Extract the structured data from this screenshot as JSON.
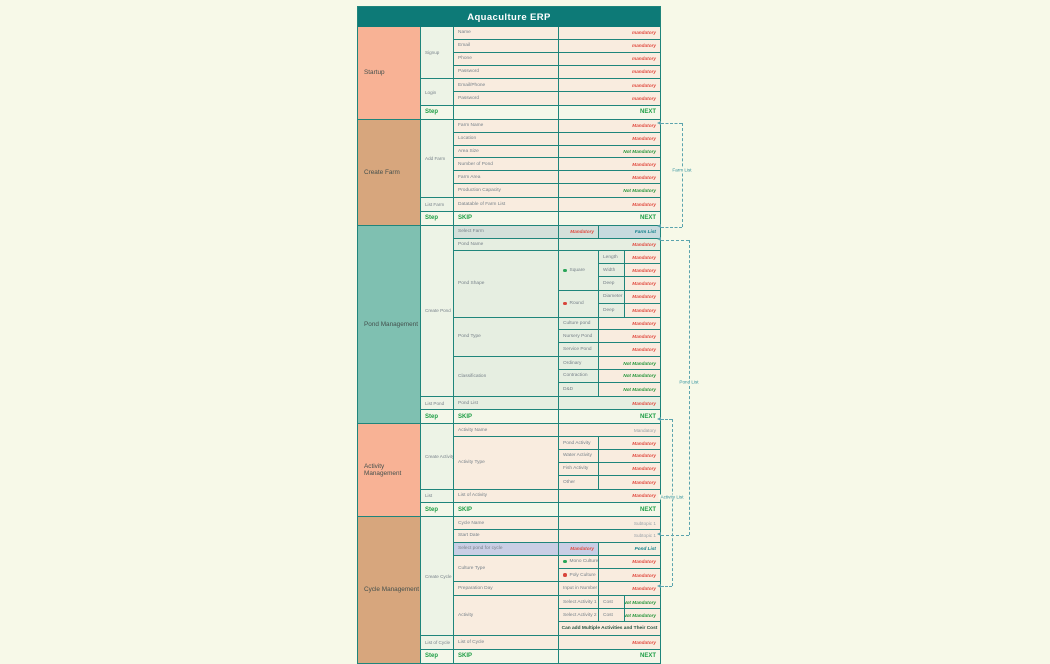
{
  "title": "Aquaculture ERP",
  "colors": {
    "header": "#0d7a77",
    "border": "#1f857b",
    "mandatory_red": "#e14b41",
    "not_mandatory_green": "#27963c",
    "reference_teal": "#0e7e8a",
    "section_salmon": "#f8b295",
    "section_tan": "#d7a67d",
    "section_teal": "#7fc0b1"
  },
  "sections": [
    {
      "name": "Startup",
      "tone": "salmon",
      "cells": "peach",
      "groups": [
        {
          "label": "Signup",
          "rows": [
            {
              "t": "simple",
              "label": "Name",
              "status": "mandatory",
              "s": "red"
            },
            {
              "t": "simple",
              "label": "Email",
              "status": "mandatory",
              "s": "red"
            },
            {
              "t": "simple",
              "label": "Phone",
              "status": "mandatory",
              "s": "red"
            },
            {
              "t": "simple",
              "label": "Password",
              "status": "mandatory",
              "s": "red"
            }
          ]
        },
        {
          "label": "Login",
          "rows": [
            {
              "t": "simple",
              "label": "Email/Phone",
              "status": "mandatory",
              "s": "red"
            },
            {
              "t": "simple",
              "label": "Password",
              "status": "mandatory",
              "s": "red"
            }
          ]
        }
      ],
      "step": {
        "label": "Step",
        "skip": "",
        "next": "NEXT"
      }
    },
    {
      "name": "Create Farm",
      "tone": "tan",
      "cells": "peach",
      "groups": [
        {
          "label": "Add Farm",
          "rows": [
            {
              "t": "simple",
              "label": "Farm Name",
              "status": "Mandatory",
              "s": "red"
            },
            {
              "t": "simple",
              "label": "Location",
              "status": "Mandatory",
              "s": "red"
            },
            {
              "t": "simple",
              "label": "Area Size",
              "status": "Not Mandatory",
              "s": "green"
            },
            {
              "t": "simple",
              "label": "Number of Pond",
              "status": "Mandatory",
              "s": "red"
            },
            {
              "t": "simple",
              "label": "Farm Area",
              "status": "Mandatory",
              "s": "red"
            },
            {
              "t": "simple",
              "label": "Production Capacity",
              "status": "Not Mandatory",
              "s": "green"
            }
          ]
        },
        {
          "label": "List Farm",
          "rows": [
            {
              "t": "simple",
              "label": "Datatable of Farm List",
              "status": "Mandatory",
              "s": "red"
            }
          ]
        }
      ],
      "step": {
        "label": "Step",
        "skip": "SKIP",
        "next": "NEXT"
      }
    },
    {
      "name": "Pond Management",
      "tone": "teal",
      "cells": "sage",
      "groups": [
        {
          "label": "Create Pond",
          "rows": [
            {
              "t": "listref",
              "label": "Select Farm",
              "status": "Mandatory",
              "ref": "Farm List",
              "tone": "sageblue"
            },
            {
              "t": "simple",
              "label": "Pond Name",
              "status": "Mandatory",
              "s": "red"
            },
            {
              "t": "shape",
              "label": "Pond Shape",
              "variants": [
                {
                  "dot": "green",
                  "name": "Square",
                  "items": [
                    {
                      "label": "Length",
                      "status": "Mandatory",
                      "s": "red"
                    },
                    {
                      "label": "Width",
                      "status": "Mandatory",
                      "s": "red"
                    },
                    {
                      "label": "Deep",
                      "status": "Mandatory",
                      "s": "red"
                    }
                  ]
                },
                {
                  "dot": "red",
                  "name": "Round",
                  "items": [
                    {
                      "label": "Diameter",
                      "status": "Mandatory",
                      "s": "red"
                    },
                    {
                      "label": "Deep",
                      "status": "Mandatory",
                      "s": "red"
                    }
                  ]
                }
              ]
            },
            {
              "t": "options",
              "label": "Pond Type",
              "options": [
                {
                  "label": "Culture pond",
                  "status": "Mandatory",
                  "s": "red"
                },
                {
                  "label": "Nursery Pond",
                  "status": "Mandatory",
                  "s": "red"
                },
                {
                  "label": "Service Pond",
                  "status": "Mandatory",
                  "s": "red"
                }
              ]
            },
            {
              "t": "options",
              "label": "Classification",
              "options": [
                {
                  "label": "Ordinary",
                  "status": "Not Mandatory",
                  "s": "green"
                },
                {
                  "label": "Contraction",
                  "status": "Not Mandatory",
                  "s": "green"
                },
                {
                  "label": "D&D",
                  "status": "Not Mandatory",
                  "s": "green"
                }
              ]
            }
          ]
        },
        {
          "label": "List Pond",
          "rows": [
            {
              "t": "simple",
              "label": "Pond List",
              "status": "Mandatory",
              "s": "red"
            }
          ]
        }
      ],
      "step": {
        "label": "Step",
        "skip": "SKIP",
        "next": "NEXT"
      }
    },
    {
      "name": "Activity Management",
      "tone": "salmon",
      "cells": "peach",
      "groups": [
        {
          "label": "Create Activity",
          "rows": [
            {
              "t": "simple",
              "label": "Activity Name",
              "status": "Mandatory",
              "s": "gray"
            },
            {
              "t": "options",
              "label": "Activity Type",
              "options": [
                {
                  "label": "Pond Activity",
                  "status": "Mandatory",
                  "s": "red"
                },
                {
                  "label": "Water Activity",
                  "status": "Mandatory",
                  "s": "red"
                },
                {
                  "label": "Fish Activity",
                  "status": "Mandatory",
                  "s": "red"
                },
                {
                  "label": "Other",
                  "status": "Mandatory",
                  "s": "red"
                }
              ]
            }
          ]
        },
        {
          "label": "List",
          "rows": [
            {
              "t": "simple",
              "label": "List of Activity",
              "status": "Mandatory",
              "s": "red"
            }
          ]
        }
      ],
      "step": {
        "label": "Step",
        "skip": "SKIP",
        "next": "NEXT"
      }
    },
    {
      "name": "Cycle Management",
      "tone": "tan",
      "cells": "peach",
      "groups": [
        {
          "label": "Create Cycle",
          "rows": [
            {
              "t": "simple",
              "label": "Cycle Name",
              "status": "Subtopic 1",
              "s": "gray"
            },
            {
              "t": "simple",
              "label": "Start Date",
              "status": "Subtopic 1",
              "s": "gray"
            },
            {
              "t": "listref",
              "label": "Select pond for cycle",
              "status": "Mandatory",
              "ref": "Pond List",
              "tone": "lavender"
            },
            {
              "t": "options",
              "label": "Culture Type",
              "options": [
                {
                  "label": "Mono Culture",
                  "status": "Mandatory",
                  "s": "red",
                  "dot": "green"
                },
                {
                  "label": "Poly Culture",
                  "status": "Mandatory",
                  "s": "red",
                  "dot": "red"
                }
              ]
            },
            {
              "t": "options",
              "label": "Preparation Day",
              "options": [
                {
                  "label": "Input in Number",
                  "status": "Mandatory",
                  "s": "red"
                }
              ]
            },
            {
              "t": "activity",
              "label": "Activity",
              "rows": [
                {
                  "c1": "Select Activity 1",
                  "c2": "Cost",
                  "status": "Not Mandatory",
                  "s": "green"
                },
                {
                  "c1": "Select Activity 2",
                  "c2": "Cost",
                  "status": "Not Mandatory",
                  "s": "green"
                }
              ],
              "note": "Can add Multiple Activities and Their Cost"
            }
          ]
        },
        {
          "label": "List of Cycle",
          "rows": [
            {
              "t": "simple",
              "label": "List of Cycle",
              "status": "Mandatory",
              "s": "red"
            }
          ]
        }
      ],
      "step": {
        "label": "Step",
        "skip": "SKIP",
        "next": "NEXT"
      }
    }
  ],
  "brackets": [
    {
      "label": "Farm List"
    },
    {
      "label": "Pond List"
    },
    {
      "label": "Activity List"
    }
  ]
}
